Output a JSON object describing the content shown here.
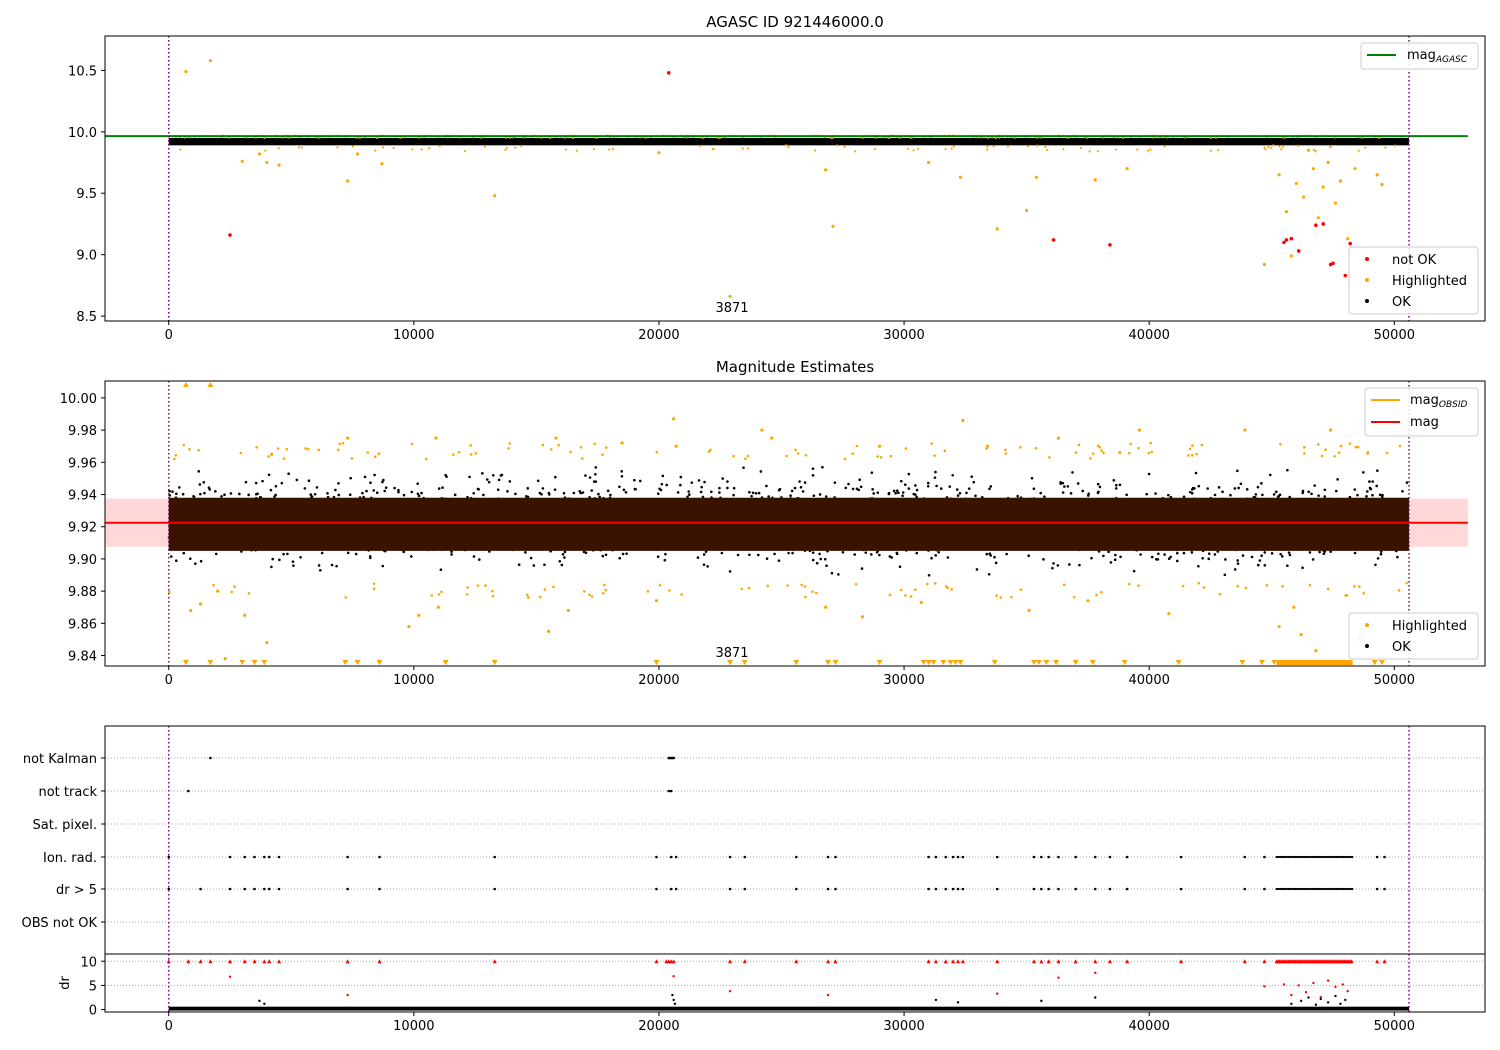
{
  "chart_data": [
    {
      "type": "scatter",
      "title": "AGASC ID 921446000.0",
      "xlabel": "",
      "ylabel": "",
      "xlim": [
        -2600,
        53700
      ],
      "ylim": [
        8.46,
        10.78
      ],
      "xticks": [
        0,
        10000,
        20000,
        30000,
        40000,
        50000
      ],
      "xtick_labels": [
        "0",
        "10000",
        "20000",
        "30000",
        "40000",
        "50000"
      ],
      "yticks": [
        8.5,
        9.0,
        9.5,
        10.0,
        10.5
      ],
      "ytick_labels": [
        "8.5",
        "9.0",
        "9.5",
        "10.0",
        "10.5"
      ],
      "vlines": [
        0,
        50600
      ],
      "annotation": {
        "x": 25000,
        "text": "3871"
      },
      "legend_upper": {
        "placement": "top-right",
        "entries": [
          {
            "label": "mag",
            "subscript": "AGASC",
            "color": "#008000",
            "kind": "line"
          }
        ]
      },
      "legend_lower": {
        "placement": "bottom-right",
        "entries": [
          {
            "label": "not OK",
            "color": "#ff0000"
          },
          {
            "label": "Highlighted",
            "color": "#ffa500"
          },
          {
            "label": "OK",
            "color": "#000000"
          }
        ]
      },
      "mag_agasc_line": {
        "y": 9.965,
        "x": [
          -2600,
          53000
        ],
        "color": "#008000"
      },
      "ok_band": {
        "x": [
          0,
          50600
        ],
        "y": [
          9.89,
          9.95
        ],
        "color": "#000000"
      },
      "series": [
        {
          "name": "not OK",
          "color": "#ff0000",
          "x": [
            2500,
            20400,
            36100,
            38400,
            45500,
            45600,
            45800,
            46100,
            46800,
            47100,
            47400,
            47500,
            48000,
            48200
          ],
          "y": [
            9.16,
            10.48,
            9.12,
            9.08,
            9.1,
            9.12,
            9.13,
            9.03,
            9.24,
            9.25,
            8.92,
            8.93,
            8.83,
            9.09
          ]
        },
        {
          "name": "Highlighted",
          "color": "#ffa500",
          "x": [
            700,
            1700,
            3000,
            3700,
            4000,
            4500,
            7300,
            7700,
            8700,
            13300,
            20000,
            22900,
            26800,
            27100,
            31000,
            32300,
            33800,
            35000,
            35400,
            37800,
            39100,
            44700,
            45300,
            45600,
            45800,
            46000,
            46300,
            46500,
            46700,
            46900,
            47100,
            47300,
            47600,
            47800,
            48100,
            48400,
            49300,
            49500
          ],
          "y": [
            10.49,
            10.58,
            9.76,
            9.82,
            9.75,
            9.73,
            9.6,
            9.82,
            9.74,
            9.48,
            9.83,
            8.66,
            9.69,
            9.23,
            9.75,
            9.63,
            9.21,
            9.36,
            9.63,
            9.61,
            9.7,
            8.92,
            9.65,
            9.35,
            8.99,
            9.58,
            9.47,
            9.85,
            9.7,
            9.3,
            9.55,
            9.75,
            9.42,
            9.6,
            9.13,
            9.7,
            9.65,
            9.57
          ]
        }
      ]
    },
    {
      "type": "scatter",
      "title": "Magnitude Estimates",
      "xlabel": "",
      "ylabel": "",
      "xlim": [
        -2600,
        53700
      ],
      "ylim": [
        9.8335,
        10.0105
      ],
      "xticks": [
        0,
        10000,
        20000,
        30000,
        40000,
        50000
      ],
      "xtick_labels": [
        "0",
        "10000",
        "20000",
        "30000",
        "40000",
        "50000"
      ],
      "yticks": [
        9.84,
        9.86,
        9.88,
        9.9,
        9.92,
        9.94,
        9.96,
        9.98,
        10.0
      ],
      "ytick_labels": [
        "9.84",
        "9.86",
        "9.88",
        "9.90",
        "9.92",
        "9.94",
        "9.96",
        "9.98",
        "10.00"
      ],
      "vlines": [
        0,
        50600
      ],
      "annotation": {
        "x": 25000,
        "text": "3871"
      },
      "legend_upper": {
        "placement": "top-right",
        "entries": [
          {
            "label": "mag",
            "subscript": "OBSID",
            "color": "#ffa500",
            "kind": "line"
          },
          {
            "label": "mag",
            "subscript": "",
            "color": "#ff0000",
            "kind": "line"
          }
        ]
      },
      "legend_lower": {
        "placement": "bottom-right",
        "entries": [
          {
            "label": "Highlighted",
            "color": "#ffa500"
          },
          {
            "label": "OK",
            "color": "#000000"
          }
        ]
      },
      "mag_line": {
        "y": 9.9225,
        "x": [
          -2600,
          53000
        ],
        "color": "#ff0000"
      },
      "mag_band": {
        "y": [
          9.9075,
          9.9375
        ],
        "x": [
          -2600,
          53000
        ],
        "color": "#ffc0c0"
      },
      "dense_band": {
        "x": [
          0,
          50600
        ],
        "y": [
          9.905,
          9.938
        ],
        "color": "#3a1200"
      },
      "ok_cloud": {
        "x": [
          0,
          50600
        ],
        "y": [
          9.885,
          9.962
        ],
        "color": "#000000"
      },
      "lower_markers_x": [
        700,
        1700,
        3000,
        3500,
        3900,
        7200,
        7700,
        8600,
        11300,
        13300,
        19900,
        22900,
        23500,
        25600,
        26900,
        27200,
        29000,
        30800,
        31000,
        31200,
        31600,
        31900,
        32100,
        32300,
        33700,
        35300,
        35500,
        35800,
        36200,
        37000,
        37700,
        39000,
        41200,
        43800,
        44600,
        45100,
        49200,
        49500
      ],
      "upper_markers_x": [
        700,
        1700
      ],
      "dense_lower_markers_x": [
        45200,
        48300
      ],
      "series": [
        {
          "name": "Highlighted",
          "color": "#ffa500",
          "x": [
            900,
            1300,
            2000,
            2300,
            3100,
            4000,
            4200,
            7300,
            9800,
            10200,
            10900,
            11000,
            15500,
            15800,
            16300,
            18500,
            19900,
            20600,
            20700,
            24200,
            24600,
            26800,
            28300,
            29000,
            30700,
            32400,
            33400,
            35100,
            36300,
            37500,
            38800,
            39600,
            40800,
            43900,
            45300,
            45900,
            46200,
            46800,
            47400,
            48600
          ],
          "y": [
            9.868,
            9.872,
            9.88,
            9.838,
            9.865,
            9.848,
            9.965,
            9.975,
            9.858,
            9.865,
            9.975,
            9.87,
            9.855,
            9.975,
            9.868,
            9.972,
            9.874,
            9.987,
            9.97,
            9.98,
            9.975,
            9.87,
            9.864,
            9.97,
            9.873,
            9.986,
            9.97,
            9.868,
            9.975,
            9.874,
            9.966,
            9.98,
            9.866,
            9.98,
            9.858,
            9.87,
            9.853,
            9.843,
            9.98,
            9.85
          ]
        }
      ]
    },
    {
      "type": "scatter",
      "title": "",
      "xlabel": "",
      "ylabel": "",
      "xlim": [
        -2600,
        53700
      ],
      "categories": [
        "not Kalman",
        "not track",
        "Sat. pixel.",
        "Ion. rad.",
        "dr > 5",
        "OBS not OK"
      ],
      "flags": {
        "not Kalman": [
          1700,
          20400,
          20450,
          20500,
          20550,
          20600
        ],
        "not track": [
          800,
          20400,
          20500
        ],
        "Sat. pixel.": [],
        "Ion. rad.": [
          0,
          2500,
          3100,
          3500,
          3900,
          4100,
          4500,
          7300,
          8600,
          13300,
          19900,
          20500,
          20700,
          22900,
          23500,
          25600,
          26900,
          27200,
          31000,
          31300,
          31700,
          32000,
          32200,
          32400,
          33800,
          35300,
          35600,
          35900,
          36300,
          37000,
          37800,
          38400,
          39100,
          41300,
          43900,
          44700,
          49300,
          49600
        ],
        "dr > 5": [
          0,
          1300,
          2500,
          3100,
          3500,
          3900,
          4100,
          4500,
          7300,
          8600,
          13300,
          19900,
          20500,
          20700,
          22900,
          23500,
          25600,
          26900,
          27200,
          31000,
          31300,
          31700,
          32000,
          32200,
          32400,
          33800,
          35300,
          35600,
          35900,
          36300,
          37000,
          37800,
          38400,
          39100,
          41300,
          43900,
          44700,
          49300,
          49600
        ],
        "OBS not OK": []
      },
      "dense_flag_range": {
        "x": [
          45200,
          48300
        ],
        "rows": [
          "Ion. rad.",
          "dr > 5"
        ]
      }
    },
    {
      "type": "scatter",
      "title": "",
      "xlabel": "",
      "ylabel": "dr",
      "xlim": [
        -2600,
        53700
      ],
      "ylim": [
        -0.5,
        11.5
      ],
      "xticks": [
        0,
        10000,
        20000,
        30000,
        40000,
        50000
      ],
      "xtick_labels": [
        "0",
        "10000",
        "20000",
        "30000",
        "40000",
        "50000"
      ],
      "yticks": [
        0,
        5,
        10
      ],
      "ytick_labels": [
        "0",
        "5",
        "10"
      ],
      "vlines": [
        0,
        50600
      ],
      "capped_x": [
        0,
        800,
        1300,
        1700,
        2500,
        3100,
        3500,
        3900,
        4100,
        4500,
        7300,
        8600,
        13300,
        19900,
        20300,
        20400,
        20500,
        20600,
        22900,
        23500,
        25600,
        26900,
        27200,
        31000,
        31300,
        31700,
        32000,
        32200,
        32400,
        33800,
        35300,
        35600,
        35900,
        36300,
        37000,
        37800,
        38400,
        39100,
        41300,
        43900,
        44700,
        49300,
        49600
      ],
      "dense_capped_range": [
        45200,
        48300
      ],
      "baseline": {
        "x": [
          0,
          50600
        ],
        "y": [
          0,
          0.6
        ],
        "color": "#000000"
      },
      "series": [
        {
          "name": "red",
          "color": "#ff0000",
          "x": [
            2500,
            7300,
            20600,
            22900,
            26900,
            33800,
            36300,
            37800,
            44700,
            45500,
            45800,
            46100,
            46400,
            46700,
            47000,
            47300,
            47600,
            47900,
            48100
          ],
          "y": [
            6.8,
            3.0,
            6.9,
            3.8,
            3.0,
            3.3,
            6.6,
            7.6,
            4.8,
            5.2,
            3.0,
            5.0,
            3.6,
            5.5,
            2.6,
            6.0,
            4.7,
            5.2,
            3.8
          ]
        },
        {
          "name": "black",
          "color": "#000000",
          "x": [
            3700,
            3900,
            20550,
            20600,
            20650,
            31300,
            32200,
            35600,
            37800,
            45800,
            46200,
            46500,
            46800,
            47000,
            47300,
            47600,
            47800,
            48000
          ],
          "y": [
            1.8,
            1.2,
            3.0,
            2.0,
            1.2,
            2.0,
            1.5,
            1.8,
            2.5,
            1.2,
            1.8,
            2.5,
            1.0,
            2.2,
            1.5,
            2.8,
            1.2,
            2.0
          ]
        }
      ]
    }
  ]
}
